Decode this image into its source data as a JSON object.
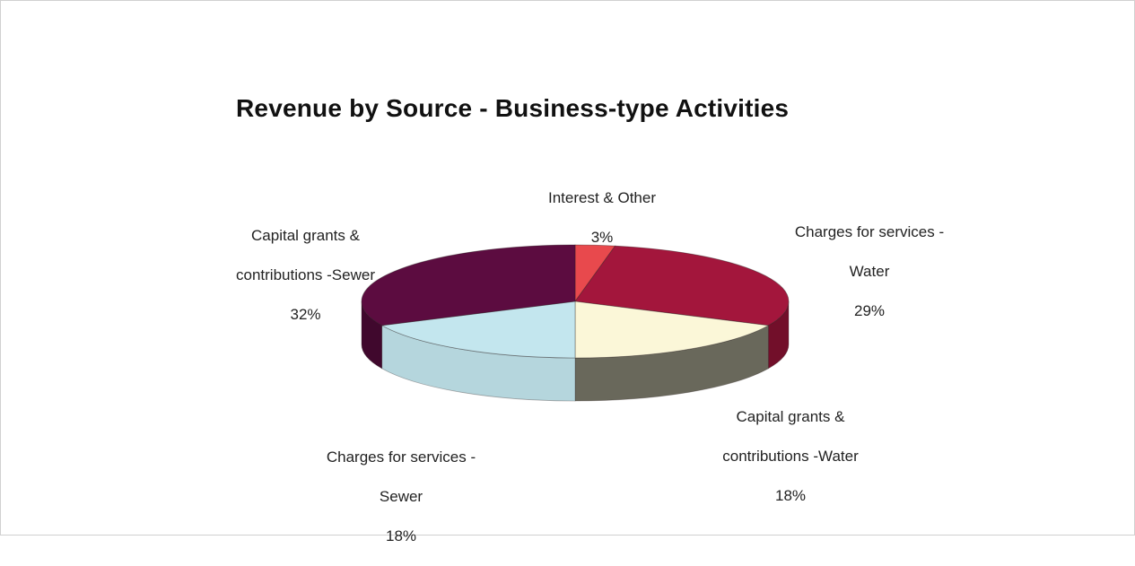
{
  "chart_data": {
    "type": "pie",
    "title": "Revenue by Source - Business-type Activities",
    "slices": [
      {
        "label": "Interest & Other",
        "value": 3,
        "pct": "3%",
        "color": "#e8494d"
      },
      {
        "label": "Charges for services - Water",
        "value": 29,
        "pct": "29%",
        "color": "#a3163c"
      },
      {
        "label": "Capital grants & contributions -Water",
        "value": 18,
        "pct": "18%",
        "color": "#fbf7d8"
      },
      {
        "label": "Charges for services - Sewer",
        "value": 18,
        "pct": "18%",
        "color": "#c3e6ee"
      },
      {
        "label": "Capital grants & contributions -Sewer",
        "value": 32,
        "pct": "32%",
        "color": "#5c0c40"
      }
    ],
    "labels": {
      "interest": {
        "line1": "Interest & Other",
        "pct": "3%"
      },
      "water_charges": {
        "line1": "Charges for services -",
        "line2": "Water",
        "pct": "29%"
      },
      "water_grants": {
        "line1": "Capital grants &",
        "line2": "contributions -Water",
        "pct": "18%"
      },
      "sewer_charges": {
        "line1": "Charges for services -",
        "line2": "Sewer",
        "pct": "18%"
      },
      "sewer_grants": {
        "line1": "Capital grants &",
        "line2": "contributions -Sewer",
        "pct": "32%"
      }
    },
    "view": "3d-tilted",
    "legend": "none"
  }
}
